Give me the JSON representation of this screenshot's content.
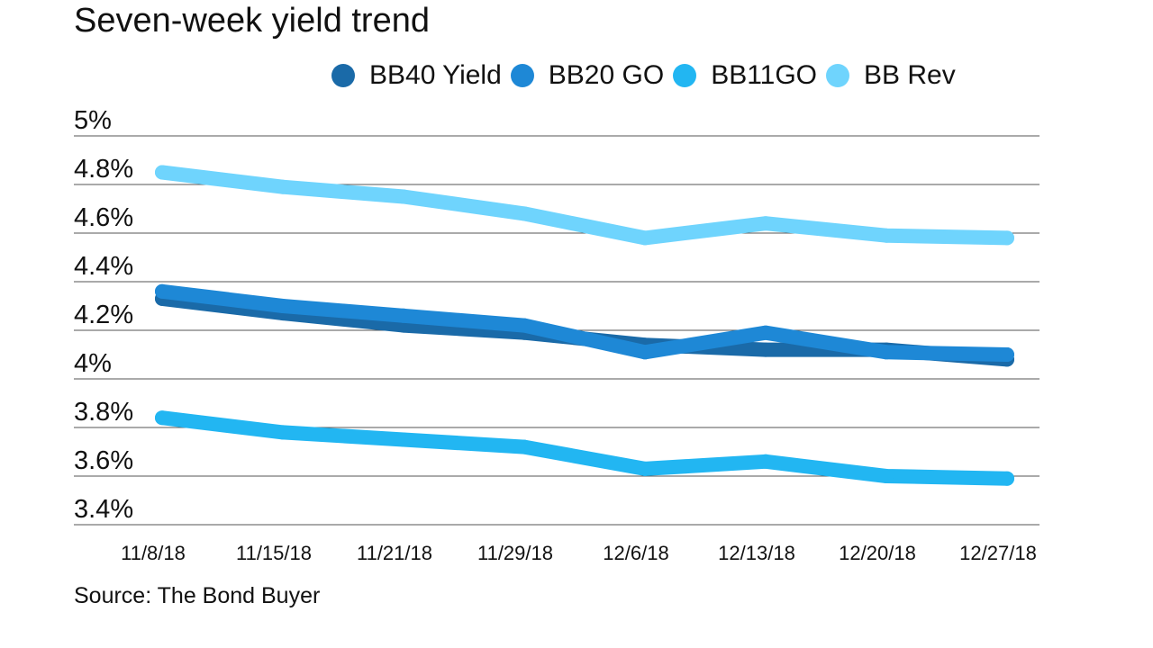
{
  "chart_data": {
    "type": "line",
    "title": "Seven-week yield trend",
    "xlabel": "",
    "ylabel": "",
    "categories": [
      "11/8/18",
      "11/15/18",
      "11/21/18",
      "11/29/18",
      "12/6/18",
      "12/13/18",
      "12/20/18",
      "12/27/18"
    ],
    "yticks": [
      {
        "value": 3.4,
        "label": "3.4%"
      },
      {
        "value": 3.6,
        "label": "3.6%"
      },
      {
        "value": 3.8,
        "label": "3.8%"
      },
      {
        "value": 4.0,
        "label": "4%"
      },
      {
        "value": 4.2,
        "label": "4.2%"
      },
      {
        "value": 4.4,
        "label": "4.4%"
      },
      {
        "value": 4.6,
        "label": "4.6%"
      },
      {
        "value": 4.8,
        "label": "4.8%"
      },
      {
        "value": 5.0,
        "label": "5%"
      }
    ],
    "ylim": [
      3.4,
      5.0
    ],
    "grid": true,
    "legend_position": "top-right",
    "series": [
      {
        "name": "BB40 Yield",
        "color": "#1a6aa8",
        "values": [
          4.33,
          4.27,
          4.22,
          4.19,
          4.14,
          4.12,
          4.12,
          4.08
        ]
      },
      {
        "name": "BB20 GO",
        "color": "#1e88d6",
        "values": [
          4.36,
          4.3,
          4.26,
          4.22,
          4.11,
          4.19,
          4.11,
          4.1
        ]
      },
      {
        "name": "BB11GO",
        "color": "#22b6f2",
        "values": [
          3.84,
          3.78,
          3.75,
          3.72,
          3.63,
          3.66,
          3.6,
          3.59
        ]
      },
      {
        "name": "BB Rev",
        "color": "#6fd4fd",
        "values": [
          4.85,
          4.79,
          4.75,
          4.68,
          4.58,
          4.64,
          4.59,
          4.58
        ]
      }
    ]
  },
  "footer": {
    "source": "Source: The Bond Buyer"
  }
}
